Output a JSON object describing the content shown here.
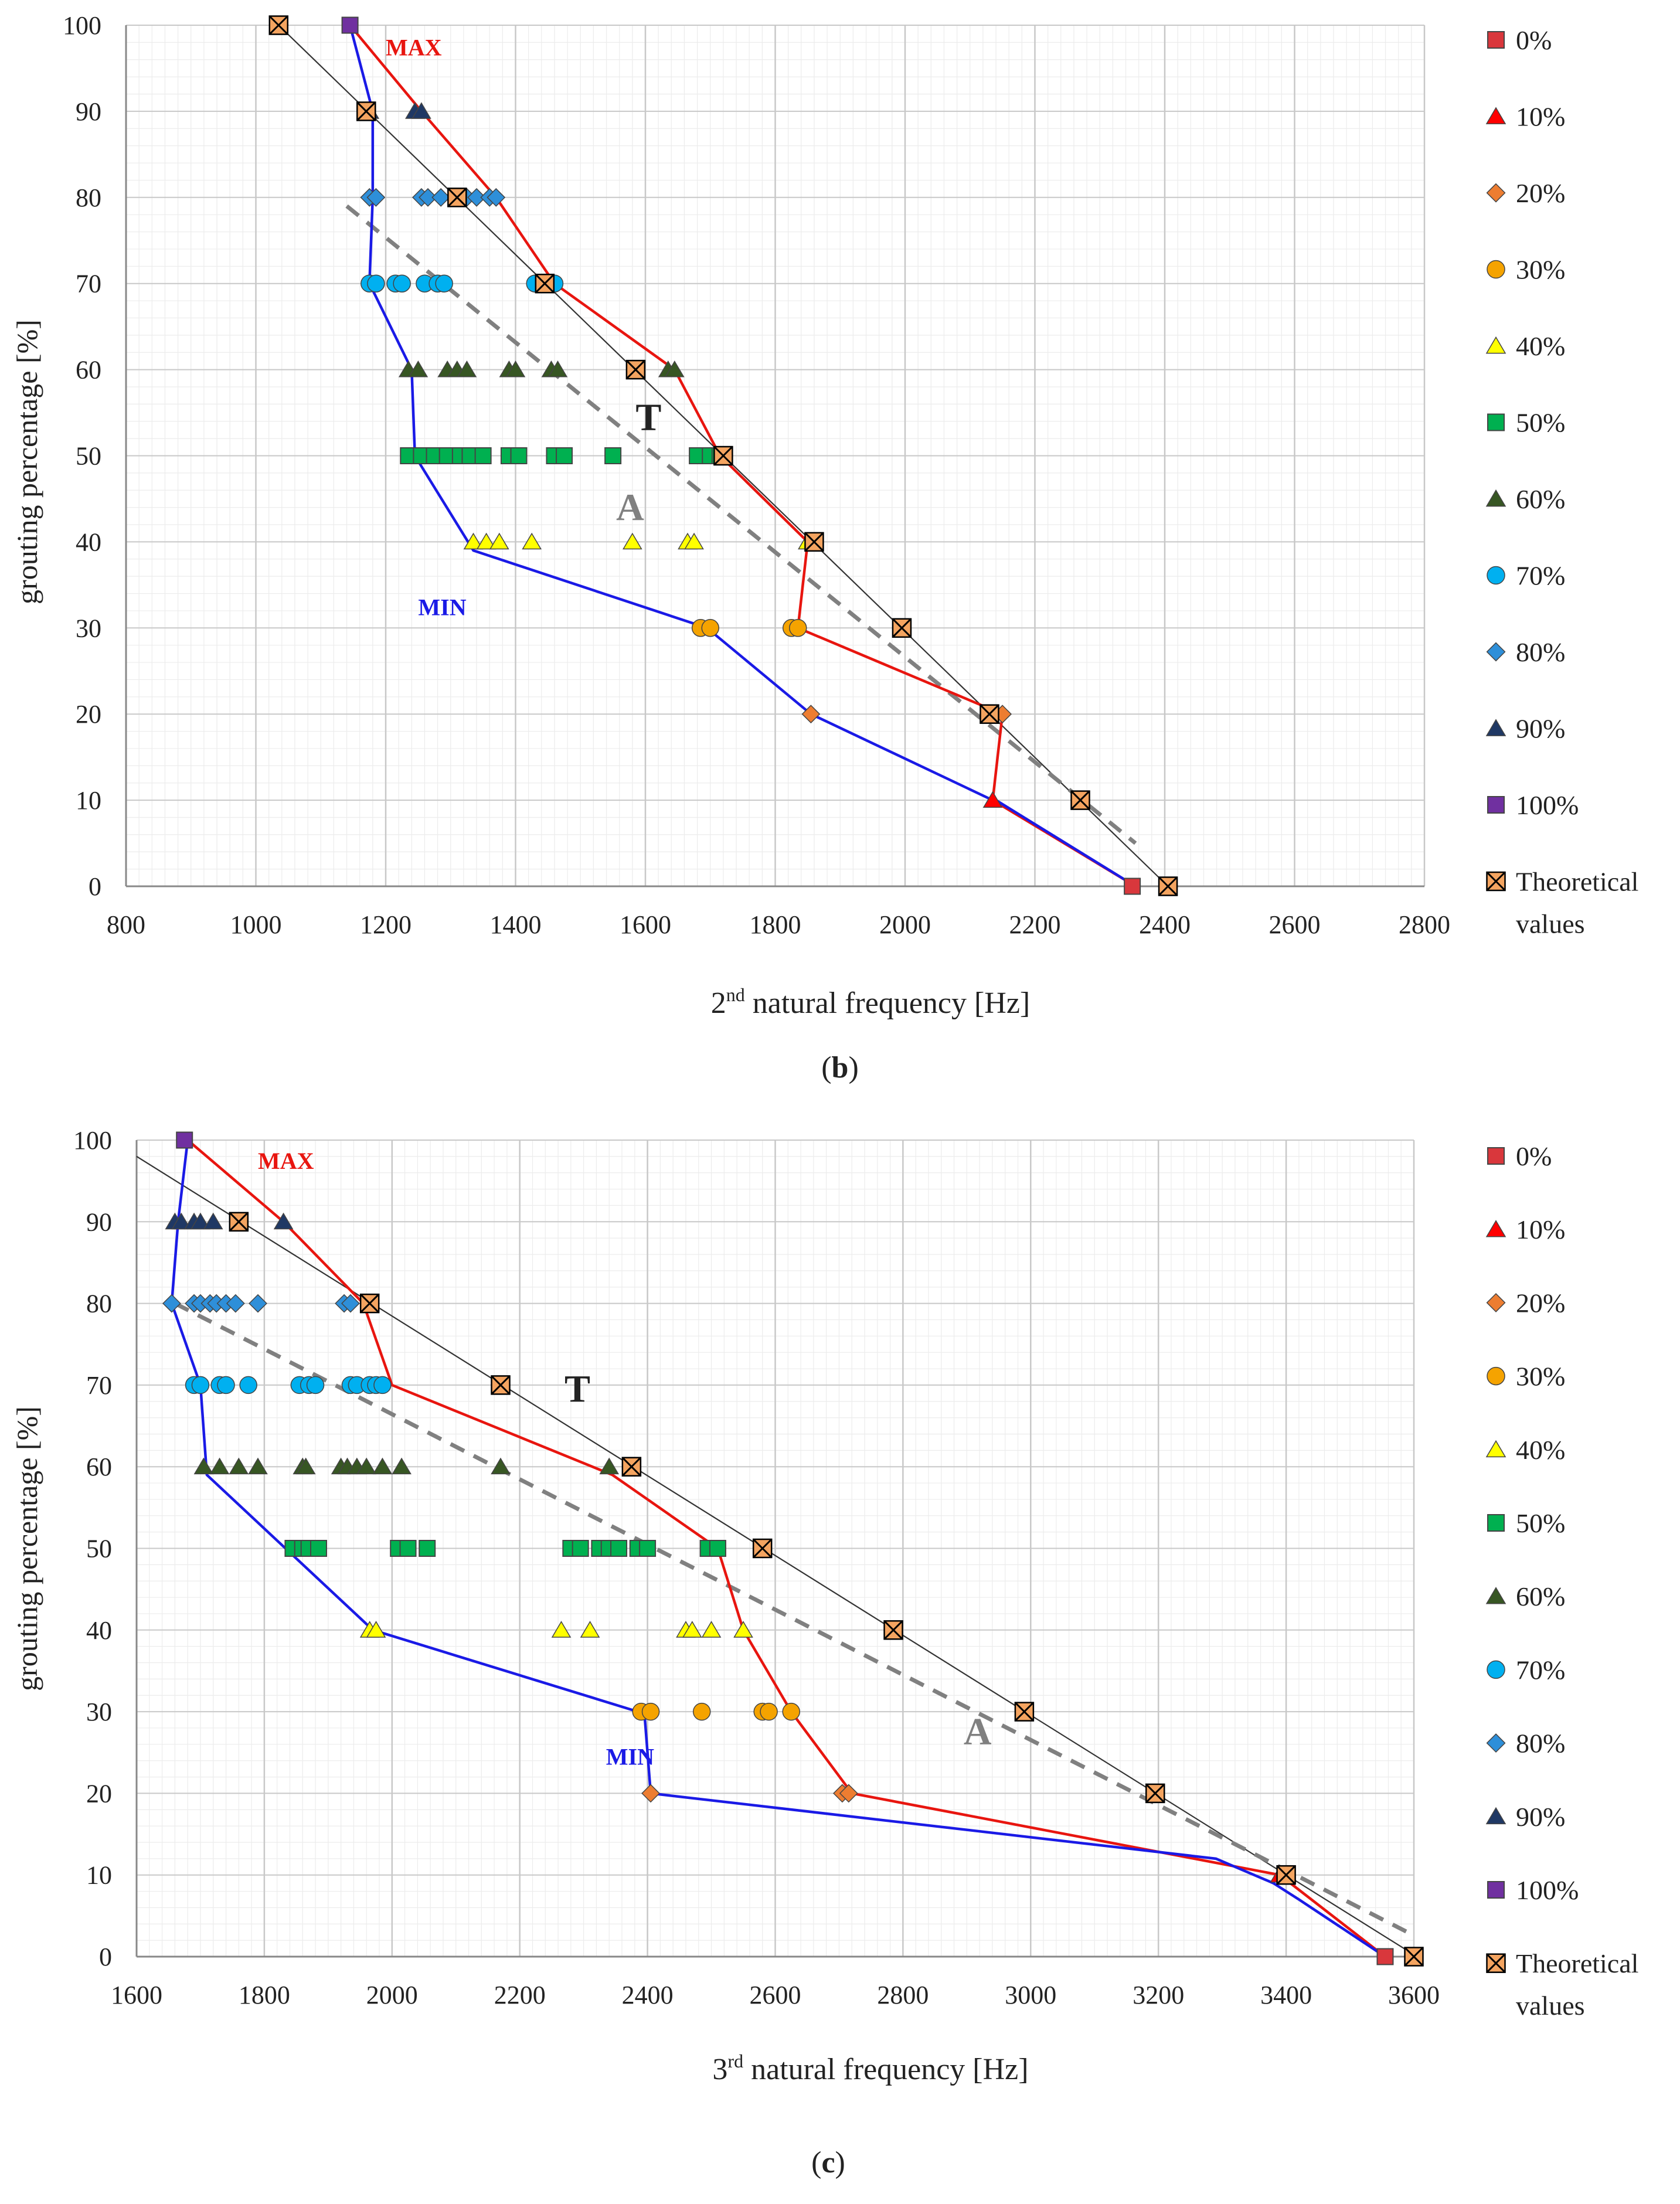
{
  "colors": {
    "grid": "#c8c8c8",
    "axis": "#888888",
    "text": "#222222",
    "theory_line": "#333333",
    "max_line": "#e8150f",
    "min_line": "#1a1ae6",
    "avg_line": "#808080",
    "marker_outline": "#444444"
  },
  "legend_entries": [
    {
      "key": "p0",
      "label": "0%",
      "marker": "square",
      "color": "#d9373c"
    },
    {
      "key": "p10",
      "label": "10%",
      "marker": "triangle",
      "color": "#ff0000"
    },
    {
      "key": "p20",
      "label": "20%",
      "marker": "diamond",
      "color": "#ed7d31"
    },
    {
      "key": "p30",
      "label": "30%",
      "marker": "circle",
      "color": "#f5a300"
    },
    {
      "key": "p40",
      "label": "40%",
      "marker": "triangle",
      "color": "#ffff00"
    },
    {
      "key": "p50",
      "label": "50%",
      "marker": "square",
      "color": "#00b050"
    },
    {
      "key": "p60",
      "label": "60%",
      "marker": "triangle",
      "color": "#375623"
    },
    {
      "key": "p70",
      "label": "70%",
      "marker": "circle",
      "color": "#00b0f0"
    },
    {
      "key": "p80",
      "label": "80%",
      "marker": "diamond",
      "color": "#2e8fd9"
    },
    {
      "key": "p90",
      "label": "90%",
      "marker": "triangle",
      "color": "#1f3864"
    },
    {
      "key": "p100",
      "label": "100%",
      "marker": "square",
      "color": "#7030a0"
    },
    {
      "key": "theory",
      "label": "Theoretical values",
      "marker": "xsquare",
      "color": "#f4a460"
    }
  ],
  "chart_data": [
    {
      "id": "b",
      "type": "scatter",
      "panel_label": "b",
      "xlabel_base": "2",
      "xlabel_sup": "nd",
      "xlabel_rest": " natural frequency [Hz]",
      "ylabel": "grouting percentage [%]",
      "xlim": [
        800,
        2800
      ],
      "ylim": [
        0,
        100
      ],
      "xticks": [
        800,
        1000,
        1200,
        1400,
        1600,
        1800,
        2000,
        2200,
        2400,
        2600,
        2800
      ],
      "yticks": [
        0,
        10,
        20,
        30,
        40,
        50,
        60,
        70,
        80,
        90,
        100
      ],
      "series": [
        {
          "key": "p0",
          "y": 0,
          "x": [
            2350
          ]
        },
        {
          "key": "p10",
          "y": 10,
          "x": [
            2135
          ]
        },
        {
          "key": "p20",
          "y": 20,
          "x": [
            1855,
            2135,
            2150
          ]
        },
        {
          "key": "p30",
          "y": 30,
          "x": [
            1685,
            1700,
            1825,
            1835
          ]
        },
        {
          "key": "p40",
          "y": 40,
          "x": [
            1335,
            1355,
            1375,
            1425,
            1580,
            1665,
            1675,
            1850
          ]
        },
        {
          "key": "p50",
          "y": 50,
          "x": [
            1235,
            1255,
            1275,
            1295,
            1315,
            1330,
            1350,
            1390,
            1405,
            1460,
            1475,
            1550,
            1680,
            1700,
            1715
          ]
        },
        {
          "key": "p60",
          "y": 60,
          "x": [
            1235,
            1250,
            1295,
            1310,
            1325,
            1390,
            1400,
            1455,
            1465,
            1635,
            1645
          ]
        },
        {
          "key": "p70",
          "y": 70,
          "x": [
            1175,
            1185,
            1215,
            1225,
            1260,
            1280,
            1290,
            1430,
            1445,
            1460
          ]
        },
        {
          "key": "p80",
          "y": 80,
          "x": [
            1175,
            1185,
            1255,
            1265,
            1285,
            1310,
            1325,
            1340,
            1360,
            1370
          ]
        },
        {
          "key": "p90",
          "y": 90,
          "x": [
            1175,
            1245,
            1255
          ]
        },
        {
          "key": "p100",
          "y": 100,
          "x": [
            1145
          ]
        },
        {
          "key": "theory",
          "points": [
            [
              2405,
              0
            ],
            [
              2270,
              10
            ],
            [
              2130,
              20
            ],
            [
              1995,
              30
            ],
            [
              1860,
              40
            ],
            [
              1720,
              50
            ],
            [
              1585,
              60
            ],
            [
              1445,
              70
            ],
            [
              1310,
              80
            ],
            [
              1170,
              90
            ],
            [
              1035,
              100
            ]
          ]
        }
      ],
      "theory_line": [
        [
          2405,
          0
        ],
        [
          1035,
          100
        ]
      ],
      "max_line": [
        [
          2355,
          0
        ],
        [
          2135,
          10
        ],
        [
          2150,
          20
        ],
        [
          1835,
          30
        ],
        [
          1850,
          40
        ],
        [
          1715,
          50
        ],
        [
          1645,
          60
        ],
        [
          1460,
          70
        ],
        [
          1370,
          80
        ],
        [
          1255,
          90
        ],
        [
          1145,
          100
        ]
      ],
      "min_line": [
        [
          2355,
          0
        ],
        [
          2140,
          10
        ],
        [
          2135,
          10
        ],
        [
          1855,
          20
        ],
        [
          1695,
          30
        ],
        [
          1335,
          39
        ],
        [
          1245,
          50
        ],
        [
          1240,
          60
        ],
        [
          1175,
          70
        ],
        [
          1180,
          80
        ],
        [
          1180,
          90
        ],
        [
          1145,
          100
        ]
      ],
      "avg_line": [
        [
          1140,
          79
        ],
        [
          2355,
          5
        ]
      ],
      "annotations": [
        {
          "text": "MAX",
          "x": 1200,
          "y": 96.5,
          "color_key": "max_line",
          "size": "small"
        },
        {
          "text": "MIN",
          "x": 1250,
          "y": 31.5,
          "color_key": "min_line",
          "size": "small"
        },
        {
          "text": "T",
          "x": 1585,
          "y": 53,
          "color_key": "text",
          "size": "large"
        },
        {
          "text": "A",
          "x": 1555,
          "y": 42.5,
          "color_key": "avg_line",
          "size": "large"
        }
      ]
    },
    {
      "id": "c",
      "type": "scatter",
      "panel_label": "c",
      "xlabel_base": "3",
      "xlabel_sup": "rd",
      "xlabel_rest": " natural frequency [Hz]",
      "ylabel": "grouting percentage [%]",
      "xlim": [
        1600,
        3600
      ],
      "ylim": [
        0,
        100
      ],
      "xticks": [
        1600,
        1800,
        2000,
        2200,
        2400,
        2600,
        2800,
        3000,
        3200,
        3400,
        3600
      ],
      "yticks": [
        0,
        10,
        20,
        30,
        40,
        50,
        60,
        70,
        80,
        90,
        100
      ],
      "series": [
        {
          "key": "p0",
          "y": 0,
          "x": [
            3555
          ]
        },
        {
          "key": "p10",
          "y": 10,
          "x": [
            3390
          ]
        },
        {
          "key": "p20",
          "y": 20,
          "x": [
            2405,
            2705,
            2715
          ]
        },
        {
          "key": "p30",
          "y": 30,
          "x": [
            2390,
            2405,
            2485,
            2580,
            2590,
            2625
          ]
        },
        {
          "key": "p40",
          "y": 40,
          "x": [
            1965,
            1975,
            2265,
            2310,
            2460,
            2470,
            2500,
            2550
          ]
        },
        {
          "key": "p50",
          "y": 50,
          "x": [
            1845,
            1860,
            1870,
            1885,
            2010,
            2025,
            2055,
            2280,
            2295,
            2325,
            2340,
            2355,
            2385,
            2400,
            2495,
            2510
          ]
        },
        {
          "key": "p60",
          "y": 60,
          "x": [
            1705,
            1730,
            1760,
            1790,
            1860,
            1865,
            1920,
            1930,
            1945,
            1960,
            1985,
            2015,
            2170,
            2340
          ]
        },
        {
          "key": "p70",
          "y": 70,
          "x": [
            1690,
            1700,
            1730,
            1740,
            1775,
            1855,
            1870,
            1880,
            1935,
            1945,
            1965,
            1975,
            1985
          ]
        },
        {
          "key": "p80",
          "y": 80,
          "x": [
            1655,
            1690,
            1700,
            1715,
            1725,
            1740,
            1755,
            1790,
            1925,
            1935
          ]
        },
        {
          "key": "p90",
          "y": 90,
          "x": [
            1660,
            1670,
            1690,
            1700,
            1720,
            1830
          ]
        },
        {
          "key": "p100",
          "y": 100,
          "x": [
            1675
          ]
        },
        {
          "key": "theory",
          "points": [
            [
              3600,
              0
            ],
            [
              3400,
              10
            ],
            [
              3195,
              20
            ],
            [
              2990,
              30
            ],
            [
              2785,
              40
            ],
            [
              2580,
              50
            ],
            [
              2375,
              60
            ],
            [
              2170,
              70
            ],
            [
              1965,
              80
            ],
            [
              1760,
              90
            ]
          ]
        }
      ],
      "theory_line": [
        [
          3605,
          0
        ],
        [
          1600,
          98
        ]
      ],
      "max_line": [
        [
          3555,
          0
        ],
        [
          3390,
          10
        ],
        [
          2720,
          20
        ],
        [
          2625,
          30
        ],
        [
          2550,
          40
        ],
        [
          2510,
          50
        ],
        [
          2345,
          59
        ],
        [
          2000,
          70
        ],
        [
          1955,
          80
        ],
        [
          1830,
          90
        ],
        [
          1680,
          100
        ]
      ],
      "min_line": [
        [
          3555,
          0
        ],
        [
          3420,
          7
        ],
        [
          3380,
          9
        ],
        [
          3290,
          12
        ],
        [
          2405,
          20
        ],
        [
          2395,
          30
        ],
        [
          2385,
          30
        ],
        [
          1970,
          40
        ],
        [
          1710,
          59
        ],
        [
          1700,
          70
        ],
        [
          1655,
          80
        ],
        [
          1665,
          90
        ],
        [
          1680,
          100
        ]
      ],
      "avg_line": [
        [
          1660,
          80
        ],
        [
          3590,
          3
        ]
      ],
      "annotations": [
        {
          "text": "MAX",
          "x": 1790,
          "y": 96.5,
          "color_key": "max_line",
          "size": "small"
        },
        {
          "text": "MIN",
          "x": 2335,
          "y": 23.5,
          "color_key": "min_line",
          "size": "small"
        },
        {
          "text": "T",
          "x": 2270,
          "y": 68,
          "color_key": "text",
          "size": "large"
        },
        {
          "text": "A",
          "x": 2895,
          "y": 26,
          "color_key": "avg_line",
          "size": "large"
        }
      ]
    }
  ]
}
